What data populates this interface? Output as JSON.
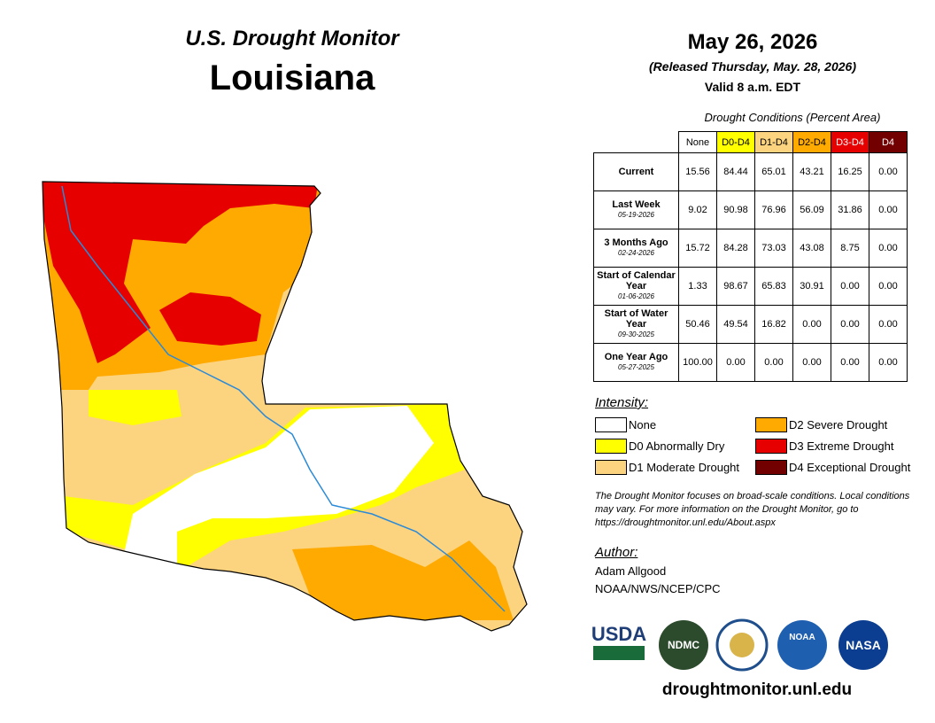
{
  "header": {
    "title": "U.S. Drought Monitor",
    "state": "Louisiana",
    "date": "May 26, 2026",
    "released": "(Released Thursday, May. 28, 2026)",
    "valid": "Valid 8 a.m. EDT"
  },
  "table": {
    "caption": "Drought Conditions (Percent Area)",
    "columns": [
      {
        "label": "None",
        "color": "#ffffff",
        "text": "#000000"
      },
      {
        "label": "D0-D4",
        "color": "#ffff00",
        "text": "#000000"
      },
      {
        "label": "D1-D4",
        "color": "#fcd37f",
        "text": "#000000"
      },
      {
        "label": "D2-D4",
        "color": "#ffaa00",
        "text": "#000000"
      },
      {
        "label": "D3-D4",
        "color": "#e60000",
        "text": "#ffffff"
      },
      {
        "label": "D4",
        "color": "#730000",
        "text": "#ffffff"
      }
    ],
    "rows": [
      {
        "label": "Current",
        "values": [
          "15.56",
          "84.44",
          "65.01",
          "43.21",
          "16.25",
          "0.00"
        ]
      },
      {
        "label": "Last Week",
        "date": "05-19-2026",
        "values": [
          "9.02",
          "90.98",
          "76.96",
          "56.09",
          "31.86",
          "0.00"
        ]
      },
      {
        "label": "3 Months Ago",
        "date": "02-24-2026",
        "values": [
          "15.72",
          "84.28",
          "73.03",
          "43.08",
          "8.75",
          "0.00"
        ]
      },
      {
        "label": "Start of Calendar Year",
        "date": "01-06-2026",
        "values": [
          "1.33",
          "98.67",
          "65.83",
          "30.91",
          "0.00",
          "0.00"
        ]
      },
      {
        "label": "Start of Water Year",
        "date": "09-30-2025",
        "values": [
          "50.46",
          "49.54",
          "16.82",
          "0.00",
          "0.00",
          "0.00"
        ]
      },
      {
        "label": "One Year Ago",
        "date": "05-27-2025",
        "values": [
          "100.00",
          "0.00",
          "0.00",
          "0.00",
          "0.00",
          "0.00"
        ]
      }
    ]
  },
  "legend": {
    "title": "Intensity:",
    "items": [
      {
        "label": "None",
        "color": "#ffffff"
      },
      {
        "label": "D0 Abnormally Dry",
        "color": "#ffff00"
      },
      {
        "label": "D1 Moderate Drought",
        "color": "#fcd37f"
      },
      {
        "label": "D2 Severe Drought",
        "color": "#ffaa00"
      },
      {
        "label": "D3 Extreme Drought",
        "color": "#e60000"
      },
      {
        "label": "D4 Exceptional Drought",
        "color": "#730000"
      }
    ]
  },
  "note": "The Drought Monitor focuses on broad-scale conditions. Local conditions may vary. For more information on the Drought Monitor, go to https://droughtmonitor.unl.edu/About.aspx",
  "author": {
    "heading": "Author:",
    "name": "Adam Allgood",
    "org": "NOAA/NWS/NCEP/CPC"
  },
  "logos": [
    "USDA",
    "NDMC",
    "NOAA",
    "NASA"
  ],
  "url": "droughtmonitor.unl.edu"
}
